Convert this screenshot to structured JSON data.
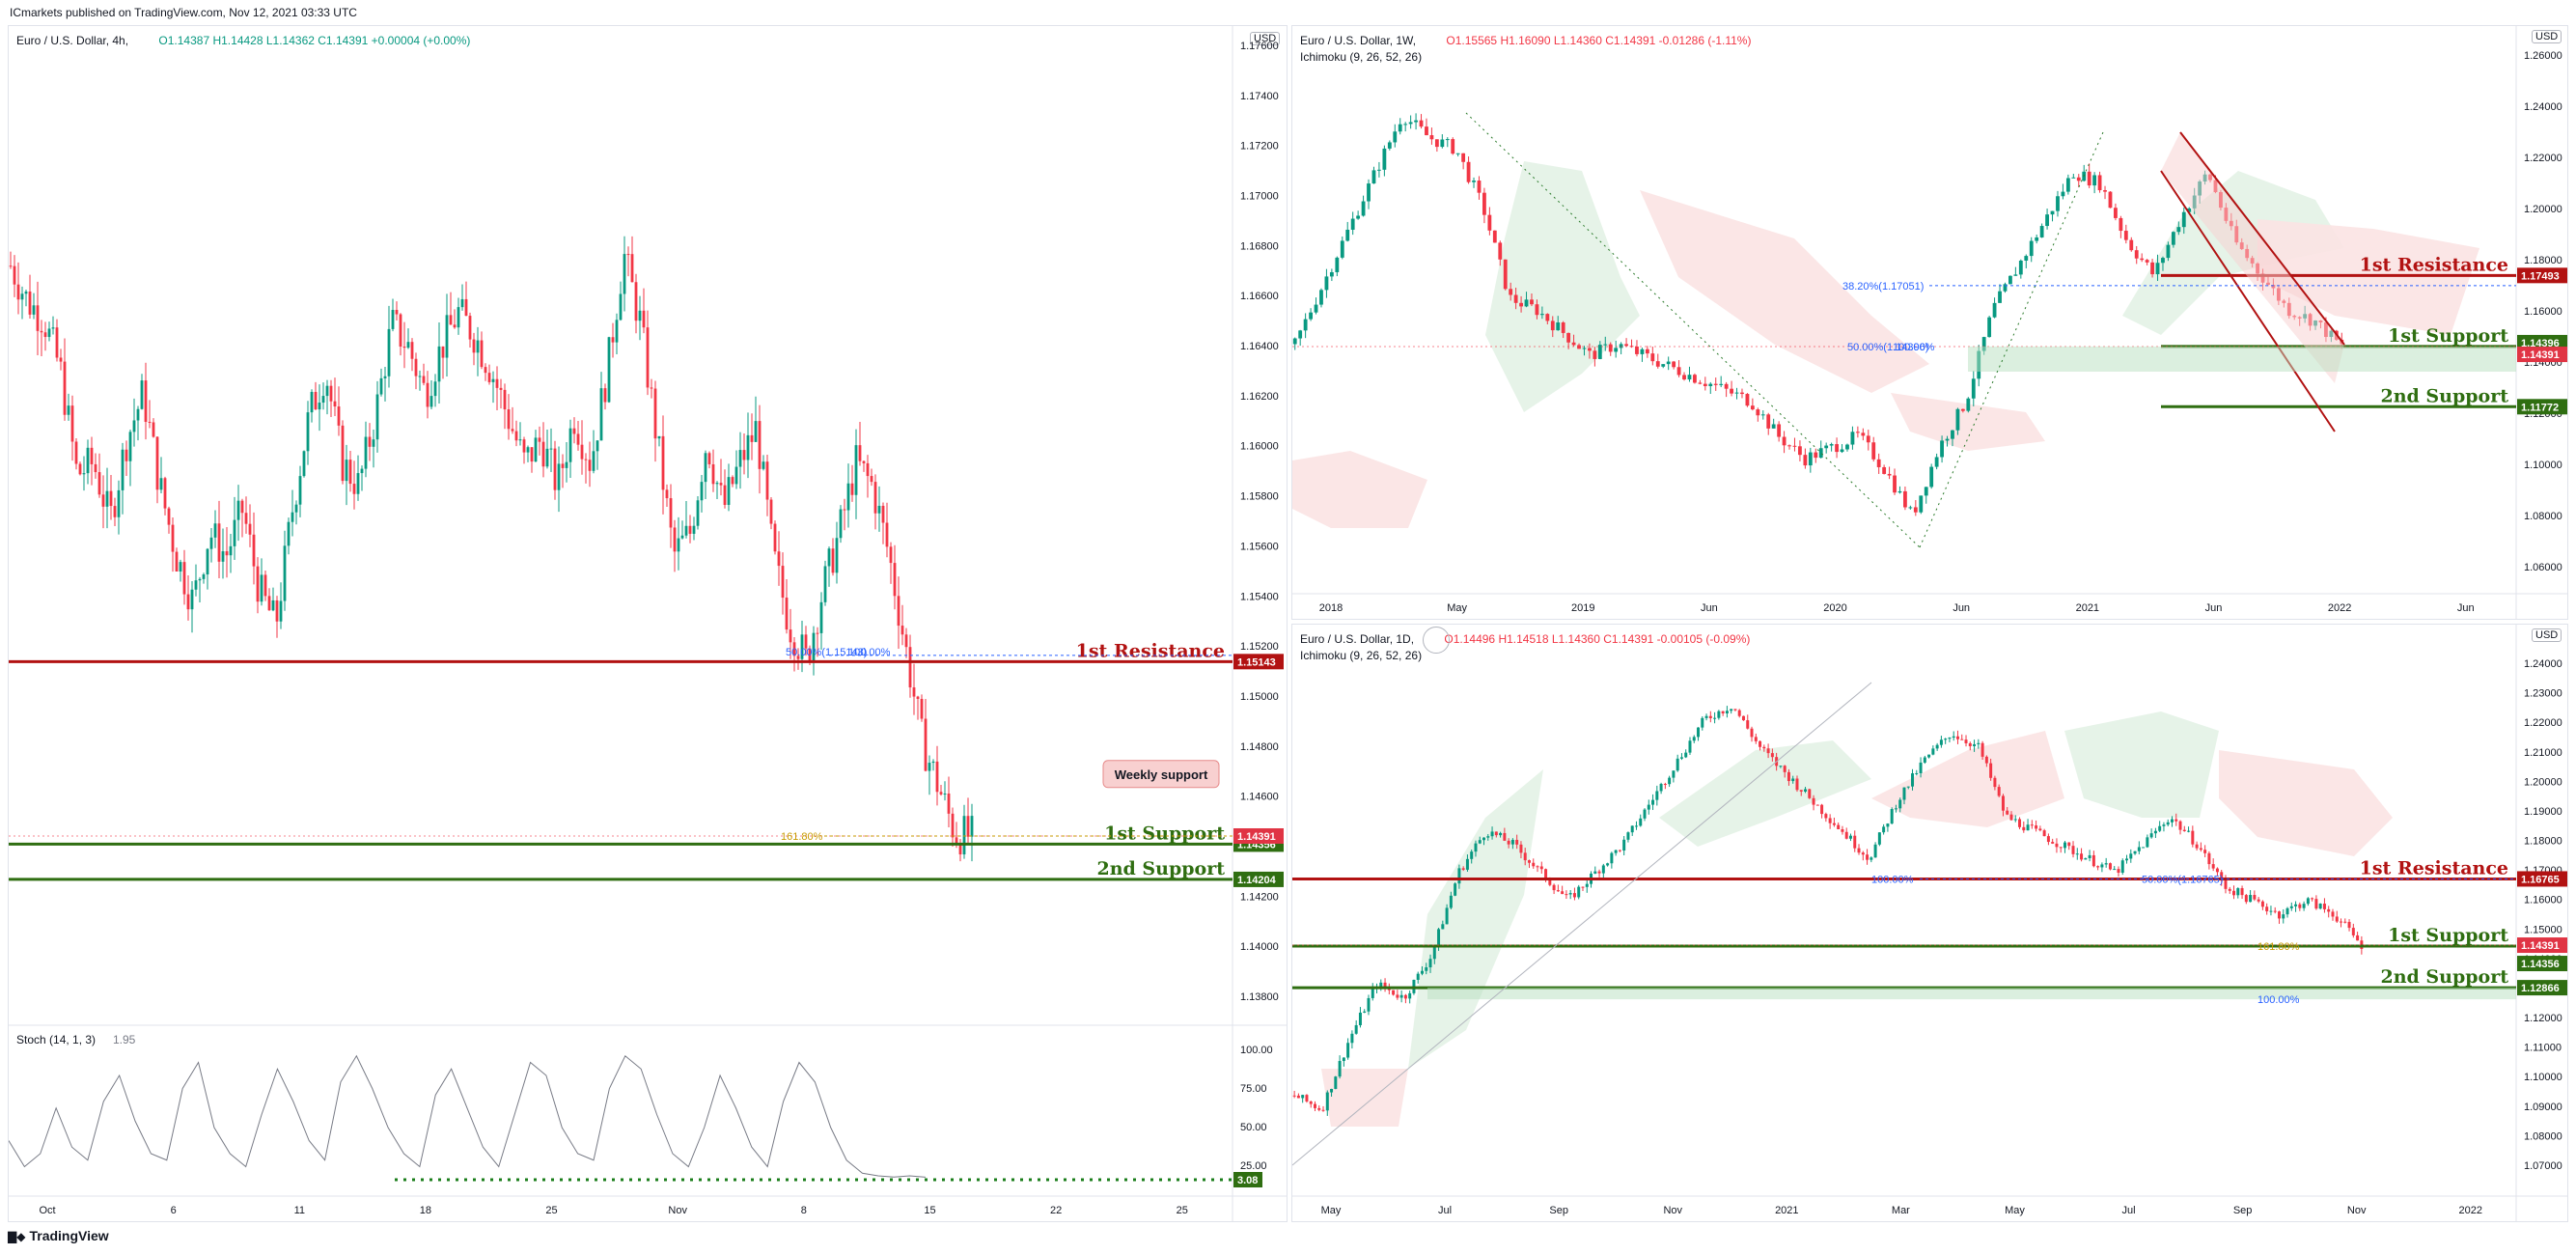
{
  "header": {
    "text": "ICmarkets published on TradingView.com, Nov 12, 2021 03:33 UTC"
  },
  "footer": {
    "brand": "TradingView",
    "logo_icon": "tradingview-logo-icon"
  },
  "colors": {
    "up": "#089981",
    "down": "#f23645",
    "resistance": "#b21212",
    "support": "#2f6e11",
    "cloud_green": "#e3f2e6",
    "cloud_red": "#fbe3e3"
  },
  "panels": {
    "h4": {
      "title": "Euro / U.S. Dollar, 4h,",
      "o": "O1.14387",
      "h": "H1.14428",
      "l": "L1.14362",
      "c": "C1.14391",
      "chg": "+0.00004 (+0.00%)",
      "yticks": [
        "1.17600",
        "1.17400",
        "1.17200",
        "1.17000",
        "1.16800",
        "1.16600",
        "1.16400",
        "1.16200",
        "1.16000",
        "1.15800",
        "1.15600",
        "1.15400",
        "1.15200",
        "1.15000",
        "1.14800",
        "1.14600",
        "1.14400",
        "1.14200",
        "1.14000",
        "1.13800"
      ],
      "xticks": [
        "Oct",
        "6",
        "11",
        "18",
        "25",
        "Nov",
        "8",
        "15",
        "22",
        "25"
      ],
      "currency": "USD",
      "levels": {
        "resistance1": "1st Resistance",
        "support1": "1st Support",
        "support2": "2nd Support",
        "weekly": "Weekly support"
      },
      "tags": {
        "res1": "1.15143",
        "price": "1.14391",
        "sup1": "1.14356",
        "sup2": "1.14204"
      },
      "fib": {
        "a": "50.00%(1.15143)",
        "b": "100.00%",
        "c": "161.80%"
      },
      "stoch": {
        "title": "Stoch (14, 1, 3)",
        "value": "1.95",
        "yticks": [
          "100.00",
          "75.00",
          "50.00",
          "25.00"
        ],
        "tag": "3.08"
      }
    },
    "w1": {
      "title": "Euro / U.S. Dollar, 1W,",
      "o": "O1.15565",
      "h": "H1.16090",
      "l": "L1.14360",
      "c": "C1.14391",
      "chg": "-0.01286 (-1.11%)",
      "indicator": "Ichimoku (9, 26, 52, 26)",
      "yticks": [
        "1.26000",
        "1.24000",
        "1.22000",
        "1.20000",
        "1.18000",
        "1.16000",
        "1.14000",
        "1.12000",
        "1.10000",
        "1.08000",
        "1.06000"
      ],
      "xticks": [
        "2018",
        "May",
        "2019",
        "Jun",
        "2020",
        "Jun",
        "2021",
        "Jun",
        "2022",
        "Jun"
      ],
      "currency": "USD",
      "levels": {
        "resistance1": "1st Resistance",
        "support1": "1st Support",
        "support2": "2nd Support"
      },
      "tags": {
        "res1": "1.17493",
        "sup1": "1.14396",
        "price": "1.14391",
        "sup2": "1.11772"
      },
      "fib": {
        "a": "38.20%(1.17051)",
        "b": "50.00%(1.14396)",
        "c": "100.00%"
      }
    },
    "d1": {
      "title": "Euro / U.S. Dollar, 1D,",
      "o": "O1.14496",
      "h": "H1.14518",
      "l": "L1.14360",
      "c": "C1.14391",
      "chg": "-0.00105 (-0.09%)",
      "indicator": "Ichimoku (9, 26, 52, 26)",
      "yticks": [
        "1.24000",
        "1.23000",
        "1.22000",
        "1.21000",
        "1.20000",
        "1.19000",
        "1.18000",
        "1.17000",
        "1.16000",
        "1.15000",
        "1.14000",
        "1.13000",
        "1.12000",
        "1.11000",
        "1.10000",
        "1.09000",
        "1.08000",
        "1.07000"
      ],
      "xticks": [
        "May",
        "Jul",
        "Sep",
        "Nov",
        "2021",
        "Mar",
        "May",
        "Jul",
        "Sep",
        "Nov",
        "2022"
      ],
      "currency": "USD",
      "levels": {
        "resistance1": "1st Resistance",
        "support1": "1st Support",
        "support2": "2nd Support"
      },
      "tags": {
        "res1": "1.16765",
        "price": "1.14391",
        "sup1": "1.14356",
        "sup2": "1.12866"
      },
      "fib": {
        "a": "100.00%",
        "b": "50.00%(1.16765)",
        "c": "161.80%",
        "d": "100.00%"
      }
    }
  },
  "chart_data": [
    {
      "type": "candlestick",
      "title": "Euro / U.S. Dollar, 4h",
      "ylim": [
        1.137,
        1.178
      ],
      "x": [
        "Oct",
        "6",
        "11",
        "18",
        "25",
        "Nov",
        "8",
        "15",
        "22",
        "25"
      ],
      "close_path": [
        1.1685,
        1.167,
        1.1662,
        1.164,
        1.1595,
        1.16,
        1.1575,
        1.161,
        1.163,
        1.159,
        1.156,
        1.154,
        1.157,
        1.156,
        1.158,
        1.1545,
        1.153,
        1.158,
        1.162,
        1.164,
        1.16,
        1.159,
        1.162,
        1.166,
        1.165,
        1.163,
        1.165,
        1.1665,
        1.1655,
        1.164,
        1.162,
        1.16,
        1.161,
        1.159,
        1.162,
        1.16,
        1.164,
        1.169,
        1.166,
        1.161,
        1.156,
        1.157,
        1.161,
        1.158,
        1.16,
        1.1615,
        1.156,
        1.153,
        1.1515,
        1.1545,
        1.157,
        1.16,
        1.159,
        1.156,
        1.152,
        1.148,
        1.146,
        1.144,
        1.1439
      ],
      "levels": {
        "resistance1": 1.15143,
        "support1": 1.14356,
        "support2": 1.14204,
        "price": 1.14391
      },
      "stoch": {
        "ylim": [
          0,
          100
        ],
        "values": [
          30,
          10,
          20,
          55,
          25,
          15,
          60,
          80,
          45,
          20,
          15,
          70,
          90,
          40,
          20,
          10,
          50,
          85,
          60,
          30,
          15,
          75,
          95,
          70,
          40,
          20,
          10,
          65,
          85,
          55,
          25,
          10,
          50,
          90,
          80,
          40,
          20,
          15,
          70,
          95,
          85,
          50,
          20,
          10,
          40,
          80,
          55,
          25,
          10,
          60,
          90,
          75,
          40,
          15,
          5,
          3,
          2,
          3,
          1.95
        ]
      }
    },
    {
      "type": "candlestick",
      "title": "Euro / U.S. Dollar, 1W",
      "ylim": [
        1.048,
        1.271
      ],
      "x": [
        "2018",
        "May",
        "2019",
        "Jun",
        "2020",
        "Jun",
        "2021",
        "Jun",
        "2022",
        "Jun"
      ],
      "close_path": [
        1.145,
        1.17,
        1.195,
        1.22,
        1.245,
        1.235,
        1.23,
        1.205,
        1.165,
        1.16,
        1.15,
        1.14,
        1.145,
        1.14,
        1.135,
        1.13,
        1.125,
        1.12,
        1.105,
        1.095,
        1.1,
        1.105,
        1.09,
        1.07,
        1.1,
        1.12,
        1.16,
        1.18,
        1.2,
        1.22,
        1.215,
        1.19,
        1.175,
        1.2,
        1.22,
        1.19,
        1.175,
        1.16,
        1.155,
        1.1439
      ],
      "levels": {
        "resistance1": 1.17493,
        "support1": 1.14396,
        "support2": 1.11772,
        "price": 1.14391
      }
    },
    {
      "type": "candlestick",
      "title": "Euro / U.S. Dollar, 1D",
      "ylim": [
        1.065,
        1.245
      ],
      "x": [
        "May",
        "Jul",
        "Sep",
        "Nov",
        "2021",
        "Mar",
        "May",
        "Jul",
        "Sep",
        "Nov",
        "2022"
      ],
      "close_path": [
        1.09,
        1.085,
        1.11,
        1.13,
        1.125,
        1.14,
        1.17,
        1.185,
        1.18,
        1.17,
        1.16,
        1.17,
        1.18,
        1.195,
        1.21,
        1.225,
        1.23,
        1.215,
        1.205,
        1.195,
        1.185,
        1.175,
        1.195,
        1.21,
        1.22,
        1.215,
        1.19,
        1.185,
        1.18,
        1.175,
        1.17,
        1.18,
        1.19,
        1.18,
        1.165,
        1.16,
        1.155,
        1.16,
        1.155,
        1.1439
      ],
      "levels": {
        "resistance1": 1.16765,
        "support1": 1.14356,
        "support2": 1.12866,
        "price": 1.14391
      }
    }
  ]
}
